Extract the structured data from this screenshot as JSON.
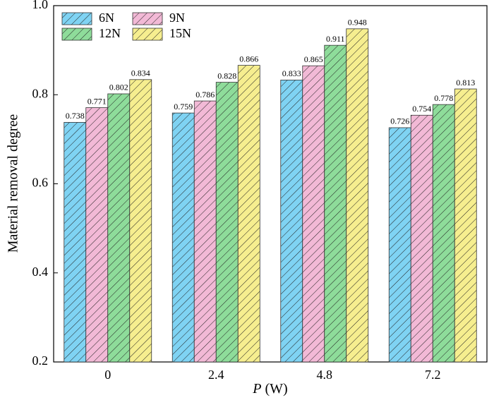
{
  "chart_data": {
    "type": "bar",
    "ylabel": "Material removal degree",
    "xlabel_var": "P",
    "xlabel_unit": "(W)",
    "categories": [
      "0",
      "2.4",
      "4.8",
      "7.2"
    ],
    "series": [
      {
        "name": "6N",
        "color": "#7fd3f3",
        "values": [
          0.738,
          0.759,
          0.833,
          0.726
        ]
      },
      {
        "name": "9N",
        "color": "#f2b9d6",
        "values": [
          0.771,
          0.786,
          0.865,
          0.754
        ]
      },
      {
        "name": "12N",
        "color": "#8edc9a",
        "values": [
          0.802,
          0.828,
          0.911,
          0.778
        ]
      },
      {
        "name": "15N",
        "color": "#f6ee8f",
        "values": [
          0.834,
          0.866,
          0.948,
          0.813
        ]
      }
    ],
    "ylim": [
      0.2,
      1.0
    ],
    "yticks": [
      0.2,
      0.4,
      0.6,
      0.8,
      {
        "value": 1.0,
        "label": "1.0"
      }
    ],
    "hatch": true,
    "legend": "upper-left"
  }
}
